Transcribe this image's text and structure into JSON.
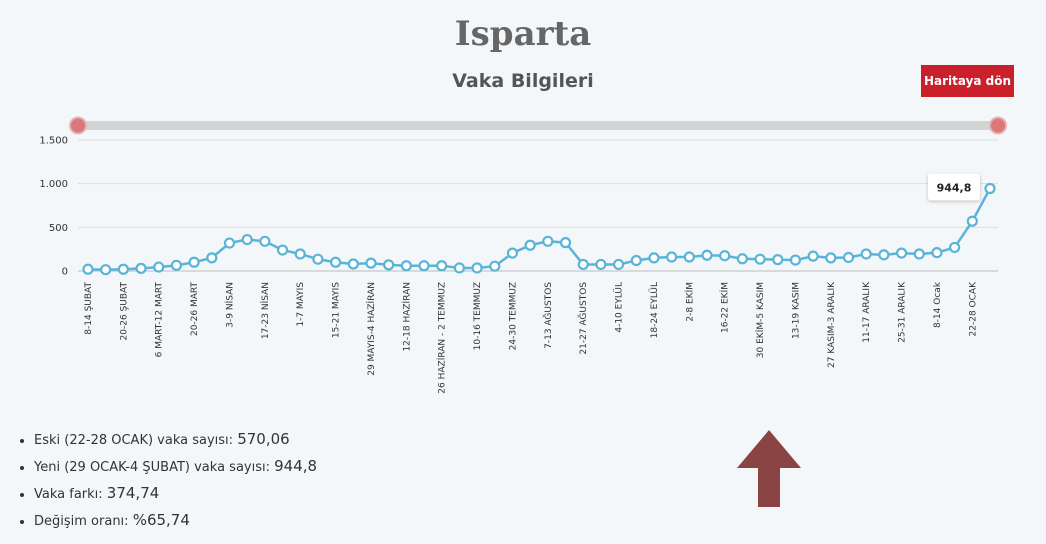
{
  "title": "Isparta",
  "subtitle": "Vaka Bilgileri",
  "button": "Haritaya dön",
  "chart_data": {
    "type": "line",
    "categories": [
      "8-14 ŞUBAT",
      null,
      "20-26 ŞUBAT",
      null,
      "6 MART-12 MART",
      null,
      "20-26 MART",
      null,
      "3-9 NİSAN",
      null,
      "17-23 NİSAN",
      null,
      "1-7 MAYIS",
      null,
      "15-21 MAYIS",
      null,
      "29 MAYIS-4 HAZİRAN",
      null,
      "12-18 HAZİRAN",
      null,
      "26 HAZİRAN - 2 TEMMUZ",
      null,
      "10-16 TEMMUZ",
      null,
      "24-30 TEMMUZ",
      null,
      "7-13 AĞUSTOS",
      null,
      "21-27 AĞUSTOS",
      null,
      "4-10 EYLÜL",
      null,
      "18-24 EYLÜL",
      null,
      "2-8 EKİM",
      null,
      "16-22 EKİM",
      null,
      "30 EKİM-5 KASIM",
      null,
      "13-19 KASIM",
      null,
      "27 KASIM-3 ARALIK",
      null,
      "11-17 ARALIK",
      null,
      "25-31 ARALIK",
      null,
      "8-14 Ocak",
      null,
      "22-28 OCAK",
      null
    ],
    "values": [
      20,
      15,
      20,
      30,
      45,
      65,
      100,
      150,
      320,
      360,
      340,
      240,
      195,
      135,
      100,
      80,
      90,
      70,
      60,
      60,
      60,
      35,
      35,
      55,
      205,
      295,
      340,
      325,
      75,
      75,
      75,
      120,
      150,
      160,
      160,
      180,
      175,
      140,
      135,
      130,
      125,
      170,
      150,
      155,
      195,
      185,
      205,
      195,
      210,
      270,
      570.06,
      944.8
    ],
    "value_labels": [
      null,
      null,
      null,
      null,
      null,
      null,
      null,
      null,
      null,
      null,
      null,
      null,
      null,
      null,
      null,
      null,
      null,
      null,
      null,
      null,
      null,
      null,
      null,
      null,
      null,
      null,
      null,
      null,
      null,
      null,
      null,
      null,
      null,
      null,
      null,
      null,
      null,
      null,
      null,
      null,
      null,
      null,
      null,
      null,
      null,
      null,
      null,
      null,
      null,
      null,
      null,
      "944,8"
    ],
    "color": "#5ab4d8",
    "ylim": [
      0,
      1500
    ],
    "yticks": [
      0,
      500,
      {
        "value": 1000,
        "label": "1.000"
      },
      {
        "value": 1500,
        "label": "1.500"
      }
    ],
    "grid": true
  },
  "stats": [
    {
      "label": "Eski (22-28 OCAK) vaka sayısı:",
      "value": "570,06"
    },
    {
      "label": "Yeni (29 OCAK-4 ŞUBAT) vaka sayısı:",
      "value": "944,8"
    },
    {
      "label": "Vaka farkı:",
      "value": "374,74"
    },
    {
      "label": "Değişim oranı:",
      "value": "%65,74"
    }
  ]
}
